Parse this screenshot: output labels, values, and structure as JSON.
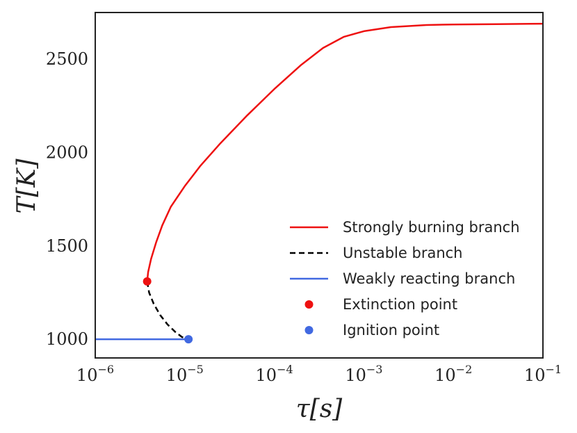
{
  "chart_data": {
    "type": "line",
    "xscale": "log",
    "xlim": [
      1e-06,
      0.1
    ],
    "ylim": [
      900,
      2750
    ],
    "xlabel": "τ[s]",
    "ylabel": "T[K]",
    "grid": false,
    "legend_position": "lower-right",
    "x_ticks": [
      {
        "value": 1e-06,
        "base": "10",
        "exp": "−6"
      },
      {
        "value": 1e-05,
        "base": "10",
        "exp": "−5"
      },
      {
        "value": 0.0001,
        "base": "10",
        "exp": "−4"
      },
      {
        "value": 0.001,
        "base": "10",
        "exp": "−3"
      },
      {
        "value": 0.01,
        "base": "10",
        "exp": "−2"
      },
      {
        "value": 0.1,
        "base": "10",
        "exp": "−1"
      }
    ],
    "y_ticks": [
      {
        "value": 1000,
        "label": "1000"
      },
      {
        "value": 1500,
        "label": "1500"
      },
      {
        "value": 2000,
        "label": "2000"
      },
      {
        "value": 2500,
        "label": "2500"
      }
    ],
    "series": [
      {
        "name": "Strongly burning branch",
        "color": "#ee1111",
        "dash": "solid",
        "marker": "line",
        "x": [
          3.8e-06,
          3.9e-06,
          4.2e-06,
          4.8e-06,
          5.6e-06,
          7e-06,
          1e-05,
          1.5e-05,
          2.5e-05,
          5e-05,
          0.0001,
          0.0002,
          0.00035,
          0.0006,
          0.001,
          0.002,
          0.005,
          0.01,
          0.03,
          0.1
        ],
        "y": [
          1310,
          1360,
          1430,
          1520,
          1610,
          1710,
          1820,
          1930,
          2050,
          2200,
          2340,
          2470,
          2560,
          2620,
          2650,
          2672,
          2683,
          2686,
          2688,
          2690
        ]
      },
      {
        "name": "Unstable branch",
        "color": "#000000",
        "dash": "dashed",
        "marker": "line",
        "x": [
          3.8e-06,
          4e-06,
          4.5e-06,
          5.3e-06,
          6.4e-06,
          7.8e-06,
          9.3e-06,
          1.1e-05
        ],
        "y": [
          1310,
          1250,
          1190,
          1130,
          1080,
          1040,
          1012,
          1000
        ]
      },
      {
        "name": "Weakly reacting branch",
        "color": "#4169e1",
        "dash": "solid",
        "marker": "line",
        "x": [
          1e-06,
          1.1e-05
        ],
        "y": [
          1000,
          1000
        ]
      },
      {
        "name": "Extinction point",
        "color": "#ee1111",
        "marker": "point",
        "x": [
          3.8e-06
        ],
        "y": [
          1310
        ]
      },
      {
        "name": "Ignition point",
        "color": "#4169e1",
        "marker": "point",
        "x": [
          1.1e-05
        ],
        "y": [
          1000
        ]
      }
    ]
  }
}
